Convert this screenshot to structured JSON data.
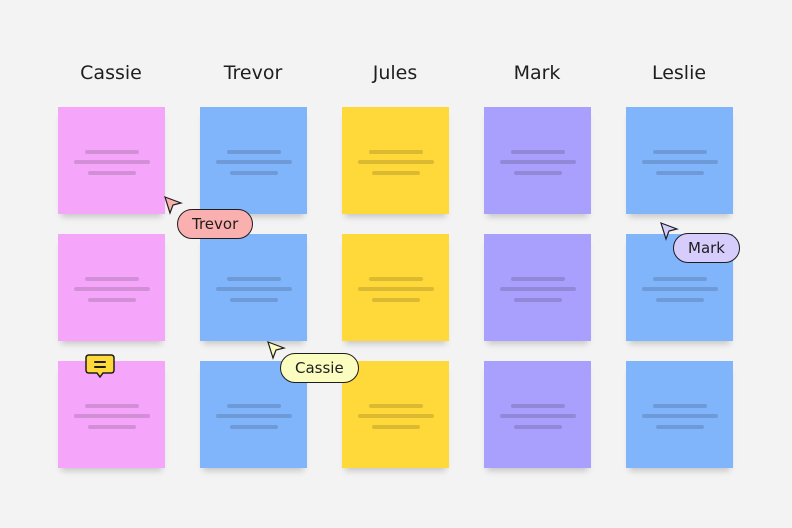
{
  "columns": [
    {
      "name": "Cassie",
      "color": "#f5a6fb"
    },
    {
      "name": "Trevor",
      "color": "#80b5fb"
    },
    {
      "name": "Jules",
      "color": "#ffd93a"
    },
    {
      "name": "Mark",
      "color": "#a99ffc"
    },
    {
      "name": "Leslie",
      "color": "#80b5fb"
    }
  ],
  "rows": 3,
  "cursors": [
    {
      "label": "Trevor",
      "color": "#fbb0b0"
    },
    {
      "label": "Cassie",
      "color": "#fbfcbf"
    },
    {
      "label": "Mark",
      "color": "#d6cdfc"
    }
  ],
  "comment_icon": {
    "name": "comment-icon",
    "color": "#ffd93a"
  }
}
